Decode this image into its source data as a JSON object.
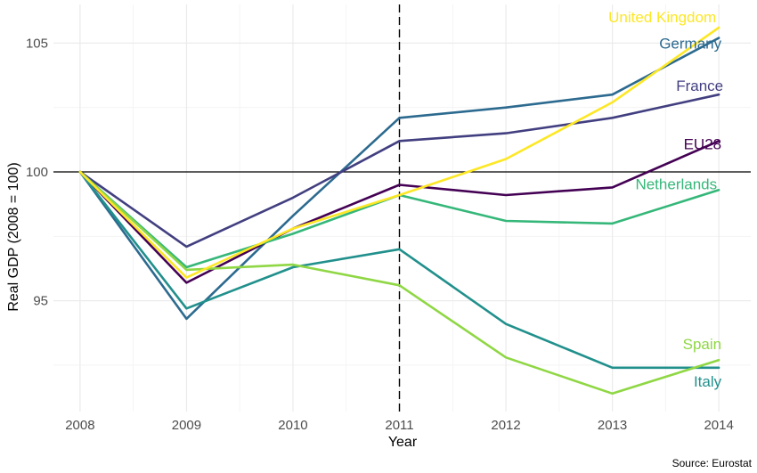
{
  "chart_data": {
    "type": "line",
    "xlabel": "Year",
    "ylabel": "Real GDP (2008 = 100)",
    "caption": "Source: Eurostat",
    "x": [
      2008,
      2009,
      2010,
      2011,
      2012,
      2013,
      2014
    ],
    "xlim": [
      2007.75,
      2014.3
    ],
    "ylim": [
      90.7,
      106.5
    ],
    "y_ticks": [
      95,
      100,
      105
    ],
    "x_ticks": [
      2008,
      2009,
      2010,
      2011,
      2012,
      2013,
      2014
    ],
    "grid": true,
    "reference_line": {
      "y": 100,
      "color": "#000000"
    },
    "vertical_marker": {
      "x": 2011,
      "style": "dashed",
      "color": "#000000"
    },
    "series": [
      {
        "name": "Germany",
        "color": "#2C6A8F",
        "values": [
          100,
          94.3,
          98.3,
          102.1,
          102.5,
          103.0,
          105.2
        ]
      },
      {
        "name": "France",
        "color": "#423F80",
        "values": [
          100,
          97.1,
          99.0,
          101.2,
          101.5,
          102.1,
          103.0
        ]
      },
      {
        "name": "EU28",
        "color": "#440154",
        "values": [
          100,
          95.7,
          97.8,
          99.5,
          99.1,
          99.4,
          101.2
        ]
      },
      {
        "name": "Netherlands",
        "color": "#35B779",
        "values": [
          100,
          96.3,
          97.6,
          99.1,
          98.1,
          98.0,
          99.3
        ]
      },
      {
        "name": "Italy",
        "color": "#21908C",
        "values": [
          100,
          94.7,
          96.3,
          97.0,
          94.1,
          92.4,
          92.4
        ]
      },
      {
        "name": "Spain",
        "color": "#8FD744",
        "values": [
          100,
          96.2,
          96.4,
          95.6,
          92.8,
          91.4,
          92.7
        ]
      },
      {
        "name": "United Kingdom",
        "color": "#FDE725",
        "values": [
          100,
          95.9,
          97.8,
          99.1,
          100.5,
          102.7,
          105.6
        ]
      }
    ]
  }
}
